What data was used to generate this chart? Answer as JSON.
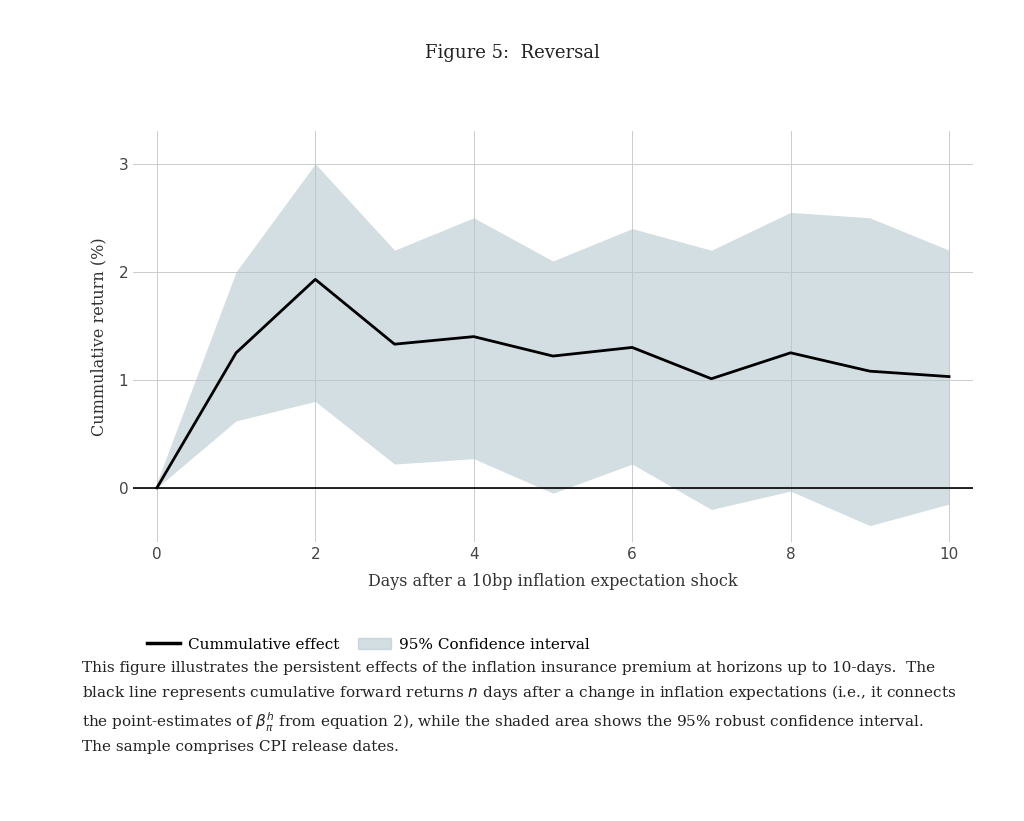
{
  "title": "Figure 5:  Reversal",
  "xlabel": "Days after a 10bp inflation expectation shock",
  "ylabel": "Cummulative return (%)",
  "x": [
    0,
    1,
    2,
    3,
    4,
    5,
    6,
    7,
    8,
    9,
    10
  ],
  "y_mean": [
    0.0,
    1.25,
    1.93,
    1.33,
    1.4,
    1.22,
    1.3,
    1.01,
    1.25,
    1.08,
    1.03
  ],
  "y_upper": [
    0.05,
    2.0,
    3.0,
    2.2,
    2.5,
    2.1,
    2.4,
    2.2,
    2.55,
    2.5,
    2.2
  ],
  "y_lower": [
    0.0,
    0.62,
    0.8,
    0.22,
    0.27,
    -0.05,
    0.22,
    -0.2,
    -0.03,
    -0.35,
    -0.15
  ],
  "line_color": "#000000",
  "shade_color": "#b0c4cc",
  "shade_alpha": 0.55,
  "ylim": [
    -0.5,
    3.3
  ],
  "xlim": [
    -0.3,
    10.3
  ],
  "yticks": [
    0,
    1,
    2,
    3
  ],
  "xticks": [
    0,
    2,
    4,
    6,
    8,
    10
  ],
  "grid_color": "#cccccc",
  "background_color": "#ffffff",
  "legend_line_label": "Cummulative effect",
  "legend_shade_label": "95% Confidence interval",
  "caption_text": "This figure illustrates the persistent effects of the inflation insurance premium at horizons up to 10-days.  The\nblack line represents cumulative forward returns $n$ days after a change in inflation expectations (i.e., it connects\nthe point-estimates of $\\beta^h_\\pi$ from equation 2), while the shaded area shows the 95% robust confidence interval.\nThe sample comprises CPI release dates.",
  "title_fontsize": 13,
  "label_fontsize": 11.5,
  "tick_fontsize": 11,
  "legend_fontsize": 11,
  "caption_fontsize": 11
}
